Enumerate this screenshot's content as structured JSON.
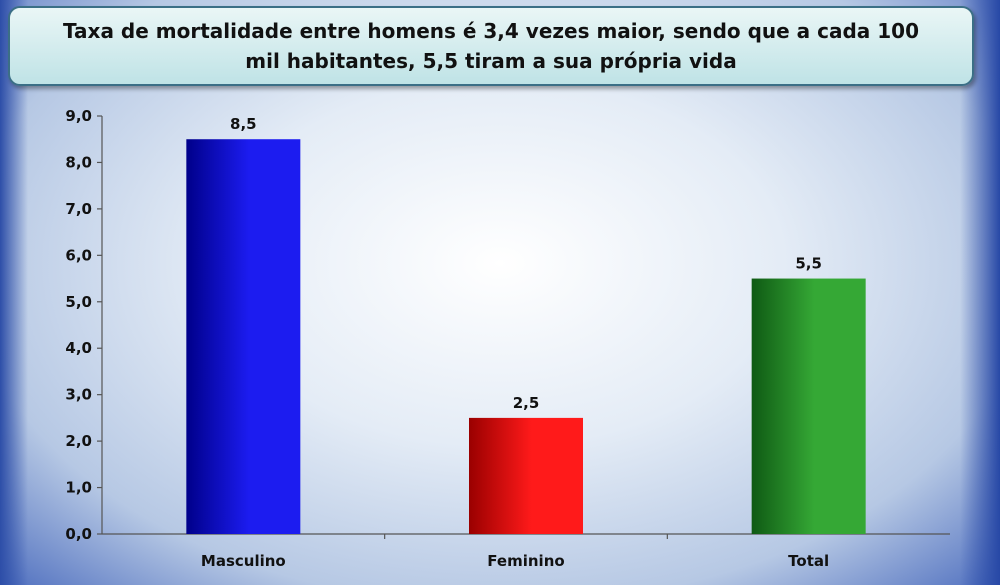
{
  "chart_data": {
    "type": "bar",
    "title": "Taxa de mortalidade entre homens é 3,4 vezes maior, sendo que a cada 100 mil habitantes, 5,5 tiram a sua própria vida",
    "categories": [
      "Masculino",
      "Feminino",
      "Total"
    ],
    "values": [
      8.5,
      2.5,
      5.5
    ],
    "data_labels": [
      "8,5",
      "2,5",
      "5,5"
    ],
    "yticks": [
      "0,0",
      "1,0",
      "2,0",
      "3,0",
      "4,0",
      "5,0",
      "6,0",
      "7,0",
      "8,0",
      "9,0"
    ],
    "ylim": [
      0,
      9
    ],
    "xlabel": "",
    "ylabel": "",
    "grid": false,
    "legend": "none",
    "colors": [
      {
        "light": "#1c1cf0",
        "dark": "#00008a"
      },
      {
        "light": "#ff1a1a",
        "dark": "#9a0000"
      },
      {
        "light": "#35a835",
        "dark": "#0f5a14"
      }
    ]
  }
}
